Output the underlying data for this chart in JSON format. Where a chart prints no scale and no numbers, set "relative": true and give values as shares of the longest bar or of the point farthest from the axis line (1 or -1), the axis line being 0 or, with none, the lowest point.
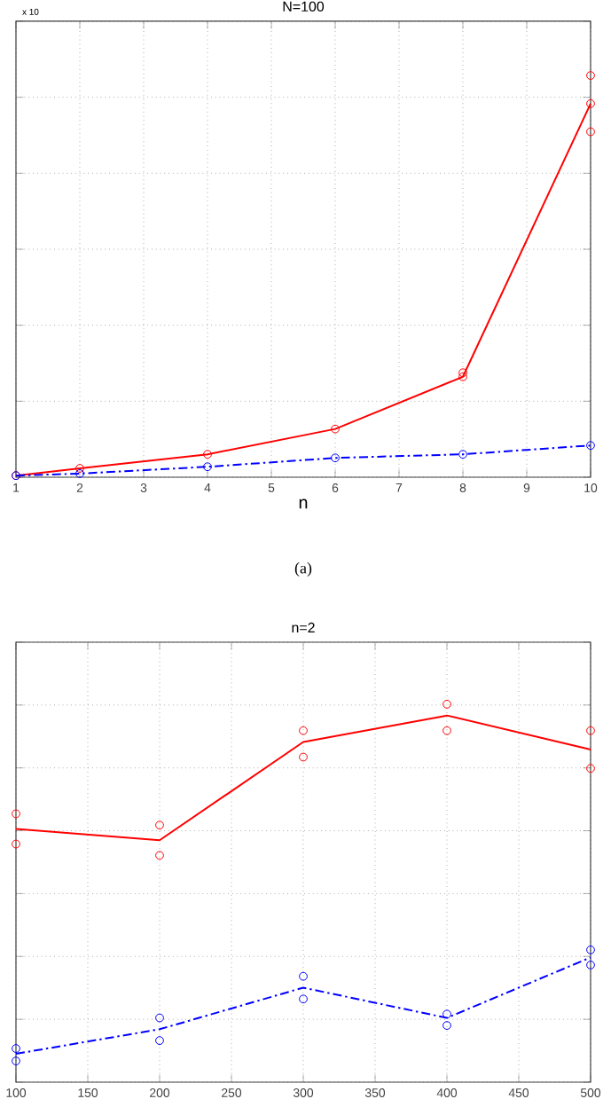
{
  "chart_data": [
    {
      "type": "line",
      "title": "N=100",
      "xlabel": "n",
      "annotations": [
        "x 10",
        "(a)"
      ],
      "relative": true,
      "x": [
        1,
        2,
        4,
        6,
        8,
        10
      ],
      "xlim": [
        1,
        10
      ],
      "xticks": [
        1,
        2,
        3,
        4,
        5,
        6,
        7,
        8,
        9,
        10
      ],
      "grid": true,
      "tick_labels": "x",
      "series": [
        {
          "color": "#ff0000",
          "line_style": "solid",
          "marker": "circle",
          "values": [
            0.004,
            0.022,
            0.057,
            0.12,
            0.25,
            0.93
          ]
        },
        {
          "color": "#0000ff",
          "line_style": "dashed",
          "marker": "circle",
          "values": [
            0.004,
            0.009,
            0.026,
            0.048,
            0.057,
            0.079
          ]
        },
        {
          "type": "scatter",
          "color": "#ff0000",
          "marker": "circle",
          "x": [
            8,
            10,
            10
          ],
          "values": [
            0.26,
            0.86,
            1
          ]
        }
      ]
    },
    {
      "type": "line",
      "title": "n=2",
      "relative": true,
      "x": [
        100,
        200,
        300,
        400,
        500
      ],
      "xlim": [
        100,
        500
      ],
      "xticks": [
        100,
        150,
        200,
        250,
        300,
        350,
        400,
        450,
        500
      ],
      "grid": true,
      "tick_labels": "x",
      "series": [
        {
          "color": "#ff0000",
          "line_style": "solid",
          "marker": "none",
          "values": [
            0.67,
            0.64,
            0.9,
            0.97,
            0.88
          ]
        },
        {
          "color": "#0000ff",
          "line_style": "dashed",
          "marker": "none",
          "values": [
            0.075,
            0.14,
            0.25,
            0.17,
            0.33
          ]
        },
        {
          "type": "scatter",
          "color": "#ff0000",
          "marker": "circle",
          "x": [
            100,
            100,
            200,
            200,
            300,
            300,
            400,
            400,
            500,
            500
          ],
          "values": [
            0.71,
            0.63,
            0.68,
            0.6,
            0.93,
            0.86,
            1,
            0.93,
            0.93,
            0.83
          ]
        },
        {
          "type": "scatter",
          "color": "#0000ff",
          "marker": "circle",
          "x": [
            100,
            100,
            200,
            200,
            300,
            300,
            400,
            400,
            500,
            500
          ],
          "values": [
            0.089,
            0.056,
            0.17,
            0.11,
            0.28,
            0.22,
            0.18,
            0.15,
            0.35,
            0.31
          ]
        }
      ]
    }
  ]
}
